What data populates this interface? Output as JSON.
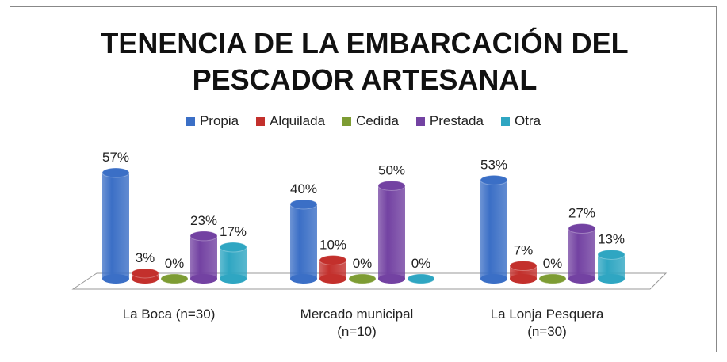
{
  "chart_data": {
    "type": "bar3d",
    "title": "TENENCIA DE LA EMBARCACIÓN DEL PESCADOR ARTESANAL",
    "categories": [
      "La Boca (n=30)",
      "Mercado municipal (n=10)",
      "La Lonja Pesquera (n=30)"
    ],
    "series": [
      {
        "name": "Propia",
        "color": "#3b6fc6",
        "values": [
          57,
          40,
          53
        ],
        "value_labels": [
          "57%",
          "40%",
          "53%"
        ]
      },
      {
        "name": "Alquilada",
        "color": "#c3302c",
        "values": [
          3,
          10,
          7
        ],
        "value_labels": [
          "3%",
          "10%",
          "7%"
        ]
      },
      {
        "name": "Cedida",
        "color": "#7d9c33",
        "values": [
          0,
          0,
          0
        ],
        "value_labels": [
          "0%",
          "0%",
          "0%"
        ]
      },
      {
        "name": "Prestada",
        "color": "#7342a2",
        "values": [
          23,
          50,
          27
        ],
        "value_labels": [
          "23%",
          "50%",
          "27%"
        ]
      },
      {
        "name": "Otra",
        "color": "#2fa6c2",
        "values": [
          17,
          0,
          13
        ],
        "value_labels": [
          "17%",
          "0%",
          "13%"
        ]
      }
    ],
    "legend": "top"
  }
}
